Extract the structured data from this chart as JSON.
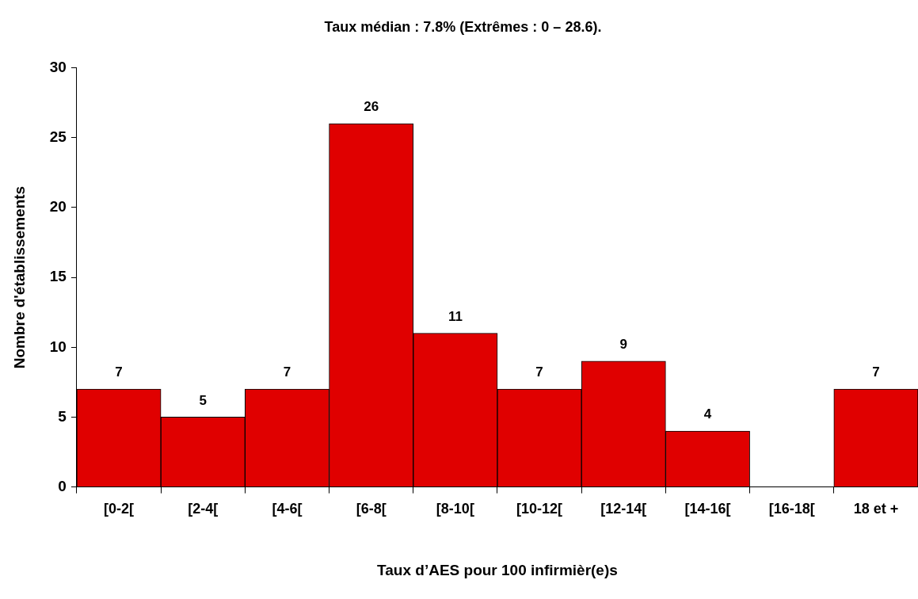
{
  "chart_data": {
    "type": "bar",
    "title": "Taux médian : 7.8% (Extrêmes : 0 – 28.6).",
    "xlabel": "Taux d’AES pour 100 infirmièr(e)s",
    "ylabel": "Nombre d'établissements",
    "categories": [
      "[0-2[",
      "[2-4[",
      "[4-6[",
      "[6-8[",
      "[8-10[",
      "[10-12[",
      "[12-14[",
      "[14-16[",
      "[16-18[",
      "18 et +"
    ],
    "values": [
      7,
      5,
      7,
      26,
      11,
      7,
      9,
      4,
      0,
      7
    ],
    "value_labels": [
      "7",
      "5",
      "7",
      "26",
      "11",
      "7",
      "9",
      "4",
      null,
      "7"
    ],
    "color": "#e00000",
    "ylim": [
      0,
      30
    ],
    "yticks": [
      0,
      5,
      10,
      15,
      20,
      25,
      30
    ]
  }
}
